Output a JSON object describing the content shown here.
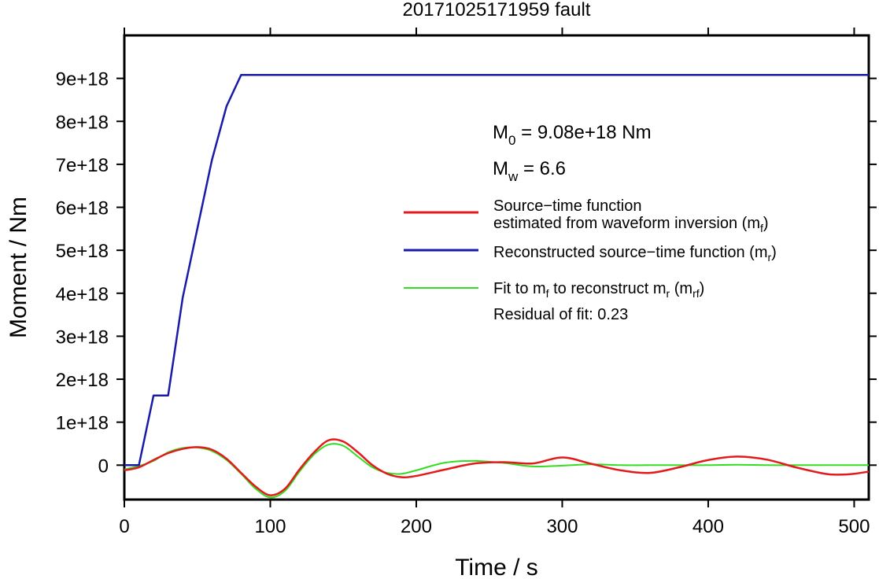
{
  "chart_data": {
    "type": "line",
    "title": "20171025171959 fault",
    "xlabel": "Time / s",
    "ylabel": "Moment / Nm",
    "xlim": [
      0,
      510
    ],
    "ylim": [
      -8e+17,
      1e+19
    ],
    "x_ticks": [
      0,
      100,
      200,
      300,
      400,
      500
    ],
    "x_tick_labels": [
      "0",
      "100",
      "200",
      "300",
      "400",
      "500"
    ],
    "y_ticks": [
      0,
      1e+18,
      2e+18,
      3e+18,
      4e+18,
      5e+18,
      6e+18,
      7e+18,
      8e+18,
      9e+18
    ],
    "y_tick_labels": [
      "0",
      "1e+18",
      "2e+18",
      "3e+18",
      "4e+18",
      "5e+18",
      "6e+18",
      "7e+18",
      "8e+18",
      "9e+18"
    ],
    "grid": false,
    "legend_position": "right",
    "annotations": {
      "m0_sym": "M",
      "m0_sub": "0",
      "m0_rest": " = 9.08e+18 Nm",
      "mw_sym": "M",
      "mw_sub": "w",
      "mw_rest": " = 6.6",
      "residual": "Residual of fit: 0.23"
    },
    "legend": {
      "red_line1": "Source−time function",
      "red_line2_a": "estimated from waveform inversion (m",
      "red_line2_sub": "f",
      "red_line2_b": ")",
      "blue_a": "Reconstructed source−time function (m",
      "blue_sub": "r",
      "blue_b": ")",
      "green_a": "Fit to m",
      "green_sub1": "f",
      "green_b": " to reconstruct m",
      "green_sub2": "r",
      "green_c": " (m",
      "green_sub3": "rf",
      "green_d": ")"
    },
    "series": [
      {
        "key": "red",
        "color": "#e31a1c",
        "x": [
          0,
          10,
          20,
          30,
          40,
          50,
          60,
          70,
          80,
          90,
          100,
          110,
          120,
          130,
          140,
          150,
          160,
          170,
          180,
          190,
          200,
          220,
          240,
          260,
          280,
          300,
          320,
          340,
          360,
          380,
          400,
          420,
          440,
          460,
          480,
          490,
          500,
          510
        ],
        "y": [
          -1.2e+17,
          -5e+16,
          1.2e+17,
          2.8e+17,
          3.8e+17,
          4.2e+17,
          3.6e+17,
          1.5e+17,
          -1.8e+17,
          -5e+17,
          -7e+17,
          -5.5e+17,
          -1e+17,
          3e+17,
          5.8e+17,
          5.5e+17,
          3e+17,
          0.0,
          -2e+17,
          -2.8e+17,
          -2.5e+17,
          -1e+17,
          4e+16,
          7e+16,
          4e+16,
          1.8e+17,
          3e+16,
          -1.2e+17,
          -1.8e+17,
          -5e+16,
          1.2e+17,
          2e+17,
          1.3e+17,
          -5e+16,
          -2e+17,
          -2.2e+17,
          -2e+17,
          -1.5e+17
        ]
      },
      {
        "key": "blue",
        "color": "#1a1aa8",
        "x": [
          0,
          10,
          20,
          30,
          40,
          50,
          60,
          70,
          80,
          510
        ],
        "y": [
          0,
          0,
          1.62e+18,
          1.62e+18,
          3.9e+18,
          5.5e+18,
          7.1e+18,
          8.35e+18,
          9.08e+18,
          9.08e+18
        ]
      },
      {
        "key": "green",
        "color": "#33dd22",
        "x": [
          0,
          10,
          20,
          30,
          40,
          50,
          60,
          70,
          80,
          90,
          100,
          110,
          120,
          130,
          140,
          150,
          160,
          170,
          180,
          190,
          200,
          220,
          240,
          260,
          280,
          300,
          320,
          340,
          360,
          380,
          400,
          420,
          440,
          460,
          480,
          500,
          510
        ],
        "y": [
          -1e+17,
          -2e+16,
          1e+17,
          3e+17,
          4e+17,
          4.1e+17,
          3.3e+17,
          1.2e+17,
          -2e+17,
          -5.5e+17,
          -7.5e+17,
          -6e+17,
          -1.5e+17,
          2.5e+17,
          4.8e+17,
          4.5e+17,
          2e+17,
          -5e+16,
          -1.8e+17,
          -2e+17,
          -1.2e+17,
          6e+16,
          1e+17,
          5e+16,
          -3e+16,
          -1e+16,
          2e+16,
          0.0,
          0.0,
          0.0,
          0.0,
          1e+16,
          0.0,
          0.0,
          0.0,
          0.0,
          0.0
        ]
      }
    ]
  }
}
